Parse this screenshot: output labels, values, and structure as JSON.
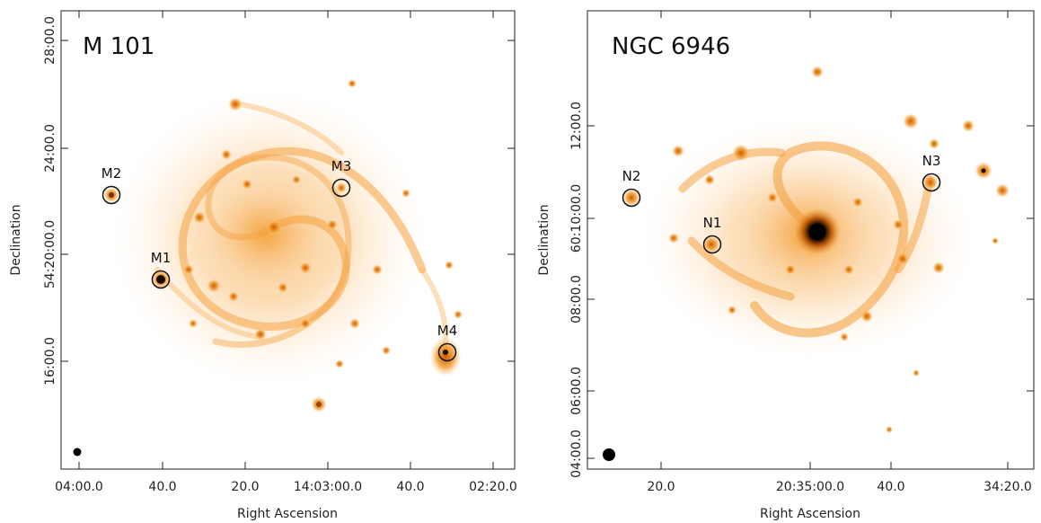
{
  "panels": [
    {
      "title": "M 101",
      "xlabel": "Right Ascension",
      "ylabel": "Declination",
      "x_ticks": [
        "04:00.0",
        "40.0",
        "20.0",
        "14:03:00.0",
        "40.0",
        "02:20.0"
      ],
      "y_ticks": [
        "28:00.0",
        "24:00.0",
        "54:20:00.0",
        "16:00.0"
      ],
      "sources": [
        {
          "label": "M1"
        },
        {
          "label": "M2"
        },
        {
          "label": "M3"
        },
        {
          "label": "M4"
        }
      ]
    },
    {
      "title": "NGC 6946",
      "xlabel": "Right Ascension",
      "ylabel": "Declination",
      "x_ticks": [
        "20.0",
        "20:35:00.0",
        "40.0",
        "34:20.0"
      ],
      "y_ticks": [
        "12:00.0",
        "60:10:00.0",
        "08:00.0",
        "06:00.0",
        "04:00.0"
      ],
      "sources": [
        {
          "label": "N1"
        },
        {
          "label": "N2"
        },
        {
          "label": "N3"
        }
      ]
    }
  ],
  "colors": {
    "background": "#ffffff",
    "emission_faint": "#fde3c0",
    "emission_mid": "#f6a94a",
    "emission_bright": "#e07600",
    "emission_peak": "#7a2d00",
    "marker": "#111111"
  }
}
